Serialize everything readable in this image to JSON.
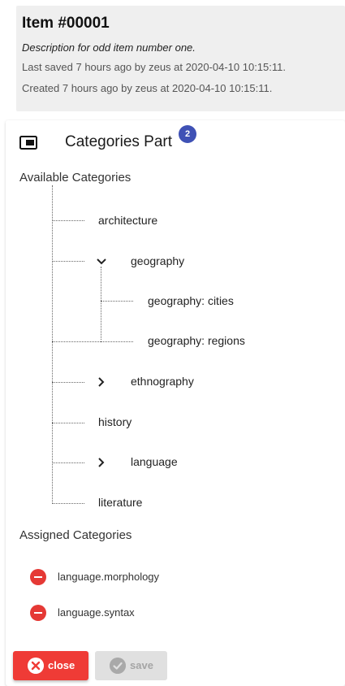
{
  "item": {
    "title": "Item #00001",
    "description": "Description for odd item number one.",
    "last_saved": "Last saved 7 hours ago by zeus at 2020-04-10 10:15:11.",
    "created": "Created 7 hours ago by zeus at 2020-04-10 10:15:11."
  },
  "panel": {
    "title": "Categories Part",
    "badge_count": "2",
    "icon": "part-window-icon",
    "available_label": "Available Categories",
    "assigned_label": "Assigned Categories"
  },
  "tree": {
    "architecture": "architecture",
    "geography": "geography",
    "geography_cities": "geography: cities",
    "geography_regions": "geography: regions",
    "ethnography": "ethnography",
    "history": "history",
    "language": "language",
    "literature": "literature"
  },
  "assigned": [
    {
      "label": "language.morphology"
    },
    {
      "label": "language.syntax"
    }
  ],
  "buttons": {
    "close": "close",
    "save": "save"
  },
  "colors": {
    "badge": "#3f51b5",
    "danger": "#ef3b36",
    "remove": "#e53935",
    "disabled": "#e0e0e0"
  }
}
